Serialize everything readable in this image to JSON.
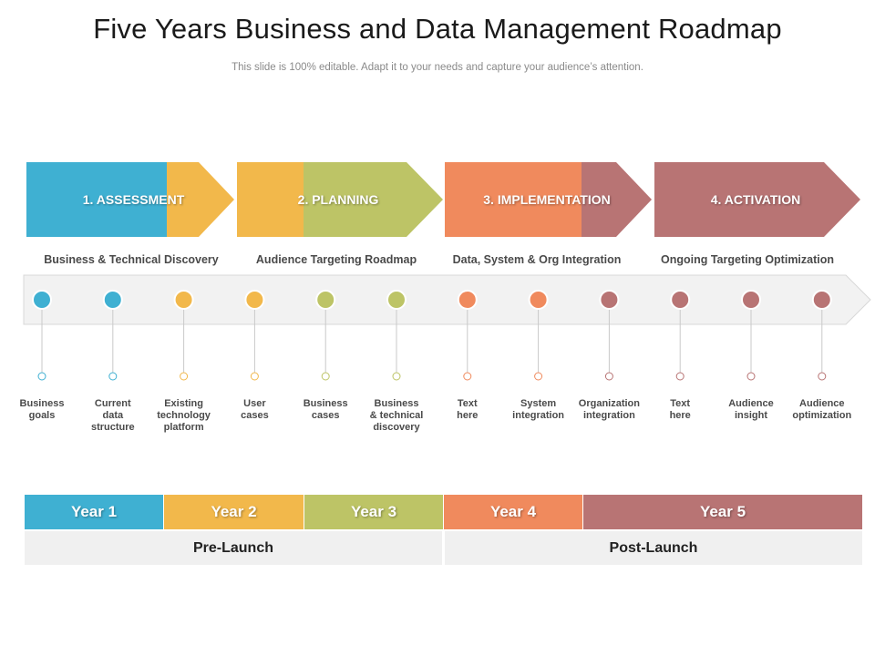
{
  "header": {
    "title": "Five Years Business and Data Management Roadmap",
    "subtitle": "This slide is 100% editable. Adapt it to your needs and capture your audience’s attention."
  },
  "colors": {
    "blue": "#3fb0d2",
    "yellow": "#f2b84b",
    "green": "#bdc466",
    "orange": "#f08a5d",
    "mauve": "#b87474",
    "track": "#f2f2f2"
  },
  "phases": [
    {
      "label": "1. ASSESSMENT",
      "subtitle": "Business  & Technical Discovery"
    },
    {
      "label": "2. PLANNING",
      "subtitle": "Audience Targeting Roadmap"
    },
    {
      "label": "3. IMPLEMENTATION",
      "subtitle": "Data, System & Org Integration"
    },
    {
      "label": "4. ACTIVATION",
      "subtitle": "Ongoing Targeting Optimization"
    }
  ],
  "steps": [
    {
      "label": "Business\ngoals"
    },
    {
      "label": "Current\ndata\nstructure"
    },
    {
      "label": "Existing\ntechnology\nplatform"
    },
    {
      "label": "User\ncases"
    },
    {
      "label": "Business\ncases"
    },
    {
      "label": "Business\n& technical\ndiscovery"
    },
    {
      "label": "Text\nhere"
    },
    {
      "label": "System\nintegration"
    },
    {
      "label": "Organization\nintegration"
    },
    {
      "label": "Text\nhere"
    },
    {
      "label": "Audience\ninsight"
    },
    {
      "label": "Audience\noptimization"
    }
  ],
  "years": [
    {
      "label": "Year 1"
    },
    {
      "label": "Year 2"
    },
    {
      "label": "Year 3"
    },
    {
      "label": "Year 4"
    },
    {
      "label": "Year 5"
    }
  ],
  "stages": [
    {
      "label": "Pre-Launch"
    },
    {
      "label": "Post-Launch"
    }
  ]
}
